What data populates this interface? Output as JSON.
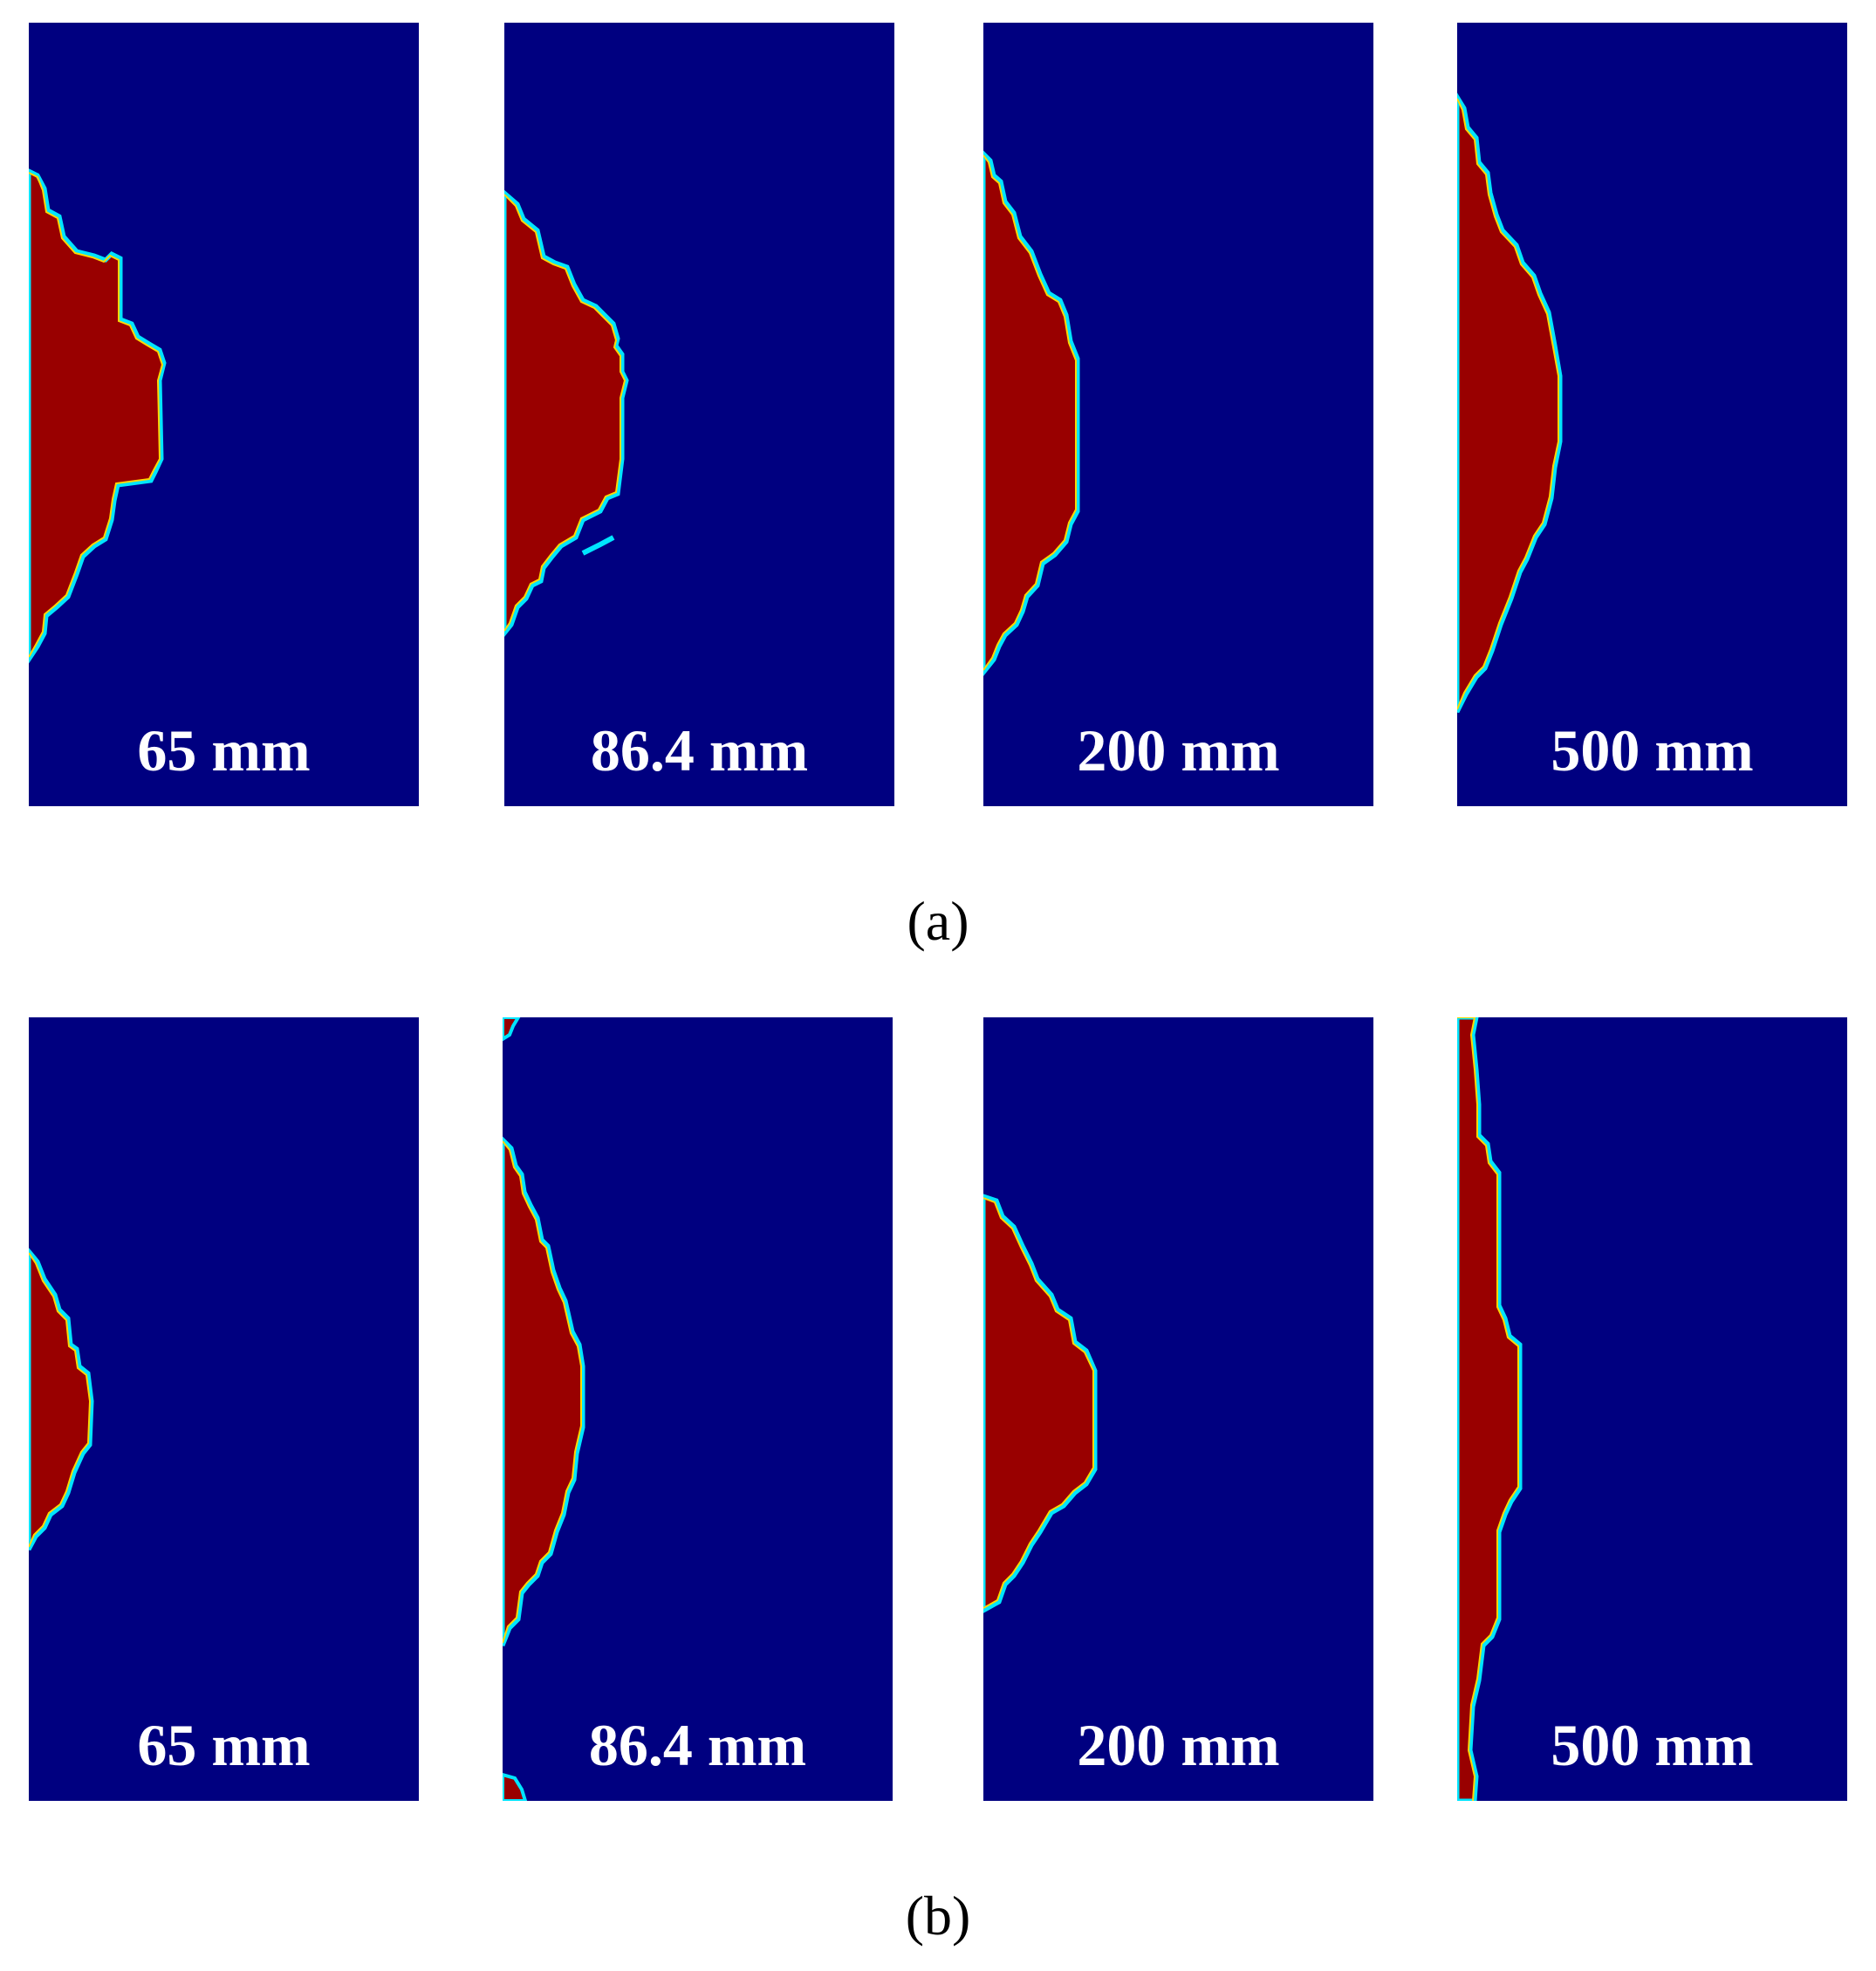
{
  "colors": {
    "background": "#000080",
    "region": "#990000",
    "edge_outer": "#00e5ff",
    "edge_inner": "#ffd700",
    "label_text": "#ffffff"
  },
  "rows": [
    {
      "id": "a",
      "caption": "(a)",
      "panels": [
        {
          "label": "65 mm"
        },
        {
          "label": "86.4 mm"
        },
        {
          "label": "200 mm"
        },
        {
          "label": "500 mm"
        }
      ]
    },
    {
      "id": "b",
      "caption": "(b)",
      "panels": [
        {
          "label": "65 mm"
        },
        {
          "label": "86.4 mm"
        },
        {
          "label": "200 mm"
        },
        {
          "label": "500 mm"
        }
      ]
    }
  ]
}
